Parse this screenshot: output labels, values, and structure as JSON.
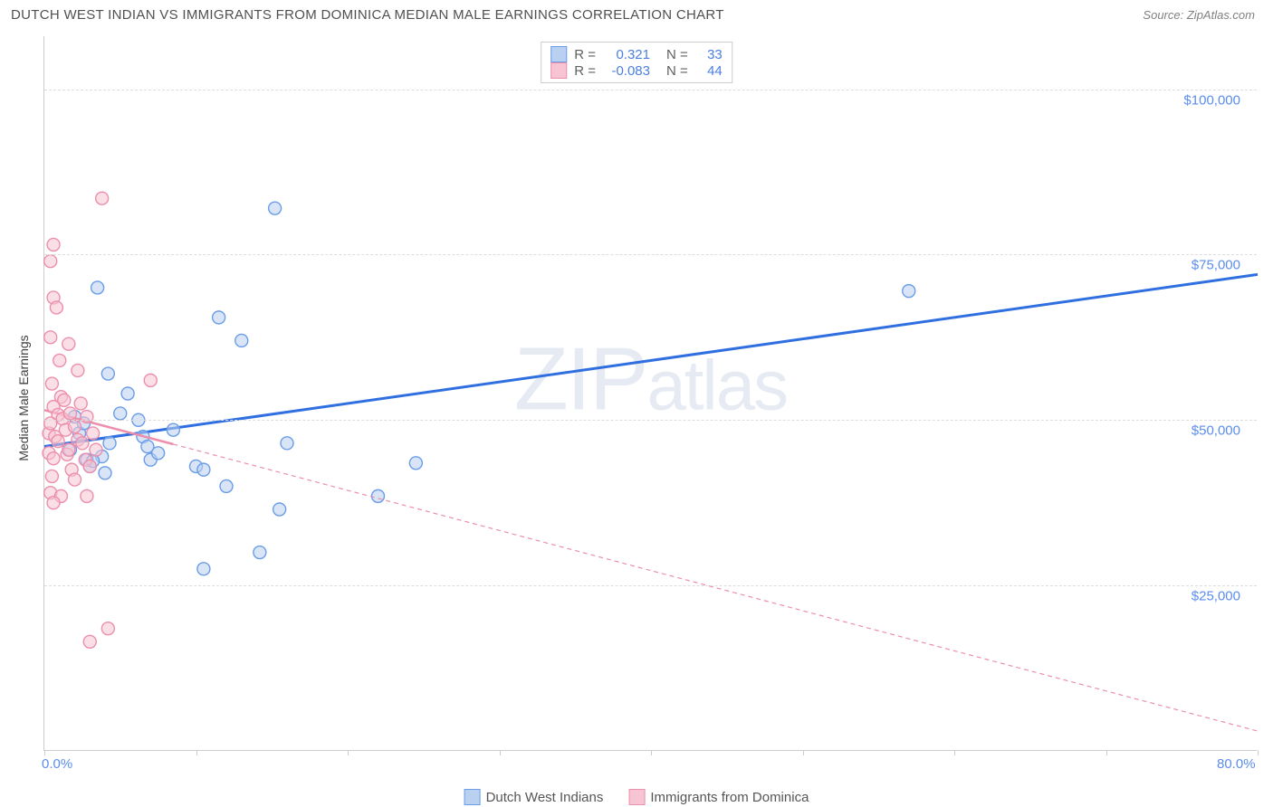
{
  "header": {
    "title": "DUTCH WEST INDIAN VS IMMIGRANTS FROM DOMINICA MEDIAN MALE EARNINGS CORRELATION CHART",
    "source_label": "Source:",
    "source_value": "ZipAtlas.com"
  },
  "chart": {
    "type": "scatter",
    "y_axis_label": "Median Male Earnings",
    "xlim": [
      0,
      80
    ],
    "ylim": [
      0,
      108000
    ],
    "x_ticks": [
      0,
      10,
      20,
      30,
      40,
      50,
      60,
      70,
      80
    ],
    "x_tick_labels": {
      "0": "0.0%",
      "80": "80.0%"
    },
    "y_gridlines": [
      25000,
      50000,
      75000,
      100000
    ],
    "y_tick_labels": {
      "25000": "$25,000",
      "50000": "$50,000",
      "75000": "$75,000",
      "100000": "$100,000"
    },
    "grid_color": "#dddddd",
    "axis_color": "#cccccc",
    "tick_label_color": "#5b8def",
    "background_color": "#ffffff",
    "marker_radius": 7,
    "marker_stroke_width": 1.4,
    "series": [
      {
        "name": "Dutch West Indians",
        "fill": "#b9d0f0",
        "stroke": "#6a9de8",
        "fill_opacity": 0.55,
        "stats": {
          "R_label": "R =",
          "R": "0.321",
          "N_label": "N =",
          "N": "33"
        },
        "trend": {
          "x1": 0,
          "y1": 46000,
          "x2": 80,
          "y2": 72000,
          "color": "#2f6fe0",
          "width": 3,
          "dash": "none"
        },
        "points": [
          [
            3.5,
            70000
          ],
          [
            15.2,
            82000
          ],
          [
            4.2,
            57000
          ],
          [
            5.0,
            51000
          ],
          [
            4.3,
            46500
          ],
          [
            3.8,
            44500
          ],
          [
            6.5,
            47500
          ],
          [
            6.8,
            46000
          ],
          [
            7.0,
            44000
          ],
          [
            2.3,
            48000
          ],
          [
            2.8,
            44000
          ],
          [
            3.0,
            43000
          ],
          [
            11.5,
            65500
          ],
          [
            13.0,
            62000
          ],
          [
            16.0,
            46500
          ],
          [
            10.0,
            43000
          ],
          [
            10.5,
            42500
          ],
          [
            12.0,
            40000
          ],
          [
            15.5,
            36500
          ],
          [
            14.2,
            30000
          ],
          [
            10.5,
            27500
          ],
          [
            24.5,
            43500
          ],
          [
            22.0,
            38500
          ],
          [
            57.0,
            69500
          ],
          [
            5.5,
            54000
          ],
          [
            2.0,
            50500
          ],
          [
            1.7,
            45500
          ],
          [
            4.0,
            42000
          ],
          [
            3.2,
            43800
          ],
          [
            2.6,
            49500
          ],
          [
            8.5,
            48500
          ],
          [
            6.2,
            50000
          ],
          [
            7.5,
            45000
          ]
        ]
      },
      {
        "name": "Immigrants from Dominica",
        "fill": "#f6c4d2",
        "stroke": "#ec8fac",
        "fill_opacity": 0.55,
        "stats": {
          "R_label": "R =",
          "R": "-0.083",
          "N_label": "N =",
          "N": "44"
        },
        "trend": {
          "x1": 0,
          "y1": 51500,
          "x2": 80,
          "y2": 3000,
          "color": "#ec8fac",
          "width": 1.2,
          "dash": "5,4"
        },
        "trend_solid_until_x": 8.5,
        "points": [
          [
            3.8,
            83500
          ],
          [
            0.6,
            76500
          ],
          [
            0.4,
            74000
          ],
          [
            0.6,
            68500
          ],
          [
            0.8,
            67000
          ],
          [
            0.4,
            62500
          ],
          [
            1.6,
            61500
          ],
          [
            1.0,
            59000
          ],
          [
            2.2,
            57500
          ],
          [
            0.5,
            55500
          ],
          [
            7.0,
            56000
          ],
          [
            1.1,
            53500
          ],
          [
            0.6,
            52000
          ],
          [
            0.3,
            48000
          ],
          [
            0.9,
            50800
          ],
          [
            1.2,
            50200
          ],
          [
            0.4,
            49500
          ],
          [
            1.4,
            48500
          ],
          [
            0.7,
            47500
          ],
          [
            2.0,
            49000
          ],
          [
            2.2,
            47000
          ],
          [
            2.8,
            50500
          ],
          [
            3.2,
            48000
          ],
          [
            2.5,
            46500
          ],
          [
            0.3,
            45000
          ],
          [
            0.6,
            44200
          ],
          [
            1.5,
            44800
          ],
          [
            2.7,
            44000
          ],
          [
            0.5,
            41500
          ],
          [
            1.8,
            42500
          ],
          [
            2.0,
            41000
          ],
          [
            3.0,
            43000
          ],
          [
            0.4,
            39000
          ],
          [
            1.1,
            38500
          ],
          [
            2.8,
            38500
          ],
          [
            0.6,
            37500
          ],
          [
            4.2,
            18500
          ],
          [
            3.0,
            16500
          ],
          [
            1.3,
            53000
          ],
          [
            1.7,
            51000
          ],
          [
            2.4,
            52500
          ],
          [
            0.9,
            46800
          ],
          [
            1.6,
            45500
          ],
          [
            3.4,
            45500
          ]
        ]
      }
    ]
  },
  "watermark": {
    "text_pre": "ZIP",
    "text_post": "atlas"
  },
  "bottom_legend": [
    {
      "label": "Dutch West Indians",
      "fill": "#b9d0f0",
      "stroke": "#6a9de8"
    },
    {
      "label": "Immigrants from Dominica",
      "fill": "#f6c4d2",
      "stroke": "#ec8fac"
    }
  ]
}
